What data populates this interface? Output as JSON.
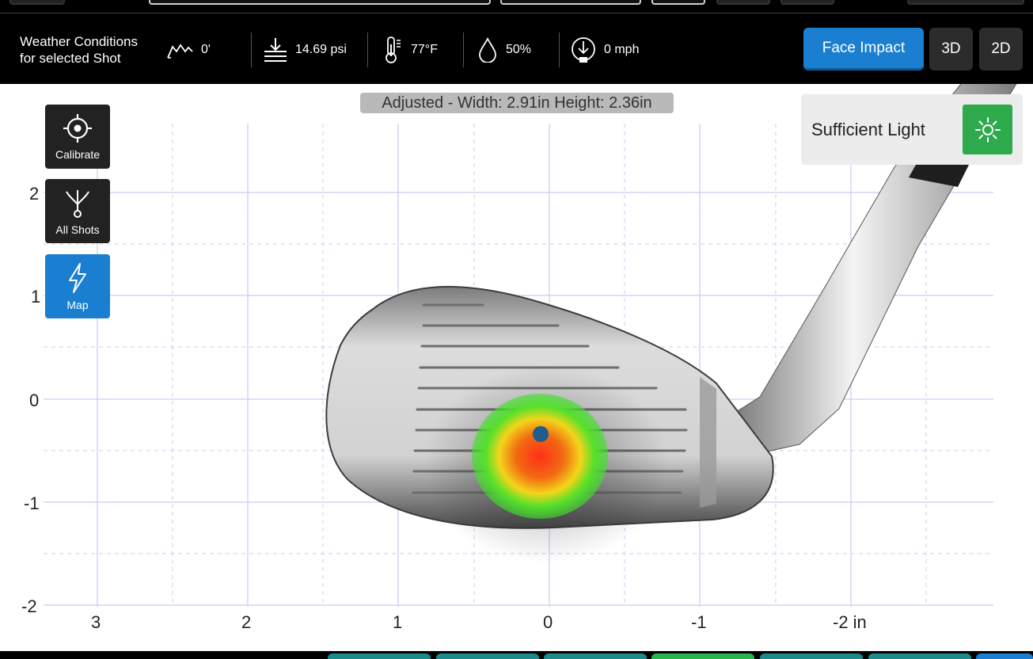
{
  "weather": {
    "title_line1": "Weather Conditions",
    "title_line2": "for selected Shot",
    "altitude": "0'",
    "pressure": "14.69 psi",
    "temperature": "77°F",
    "humidity": "50%",
    "wind": "0 mph",
    "icons": [
      "altitude-icon",
      "pressure-icon",
      "thermometer-icon",
      "humidity-drop-icon",
      "wind-icon"
    ]
  },
  "view_modes": {
    "face_impact": "Face Impact",
    "three_d": "3D",
    "two_d": "2D",
    "active": "Face Impact"
  },
  "plot": {
    "adjusted_label": "Adjusted - Width: 2.91in Height: 2.36in",
    "light_status": "Sufficient Light",
    "light_icon": "sun-icon",
    "x_ticks": [
      "3",
      "2",
      "1",
      "0",
      "-1",
      "-2 in"
    ],
    "y_ticks": [
      "2",
      "1",
      "0",
      "-1",
      "-2"
    ],
    "impact_point": {
      "x": 0.06,
      "y": -0.34
    },
    "colors": {
      "active": "#1a7fd0",
      "light_ok": "#2eaa4c",
      "impact_dot": "#1f5d8c"
    }
  },
  "side_buttons": [
    {
      "label": "Calibrate",
      "icon": "crosshair-icon",
      "active": false
    },
    {
      "label": "All Shots",
      "icon": "shots-spread-icon",
      "active": false
    },
    {
      "label": "Map",
      "icon": "lightning-icon",
      "active": true
    }
  ]
}
